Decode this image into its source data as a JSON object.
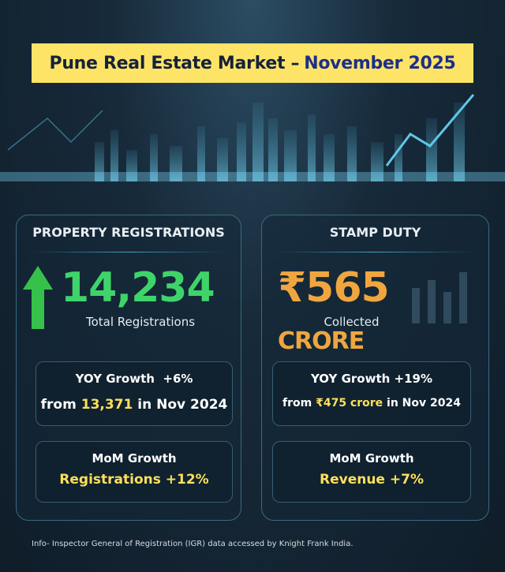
{
  "header": {
    "title_prefix": "Pune Real Estate Market –",
    "title_month": "November 2025"
  },
  "colors": {
    "banner": "#fde466",
    "green": "#3fd46a",
    "orange": "#f0a63f",
    "yellow": "#fbe05a"
  },
  "registrations": {
    "title": "PROPERTY REGISTRATIONS",
    "icon": "up-arrow-icon",
    "value": "14,234",
    "label": "Total Registrations",
    "yoy": {
      "label": "YOY Growth",
      "change": "+6%",
      "from_prefix": "from",
      "from_value": "13,371",
      "from_suffix": "in Nov 2024"
    },
    "mom": {
      "label": "MoM Growth",
      "value": "Registrations +12%"
    }
  },
  "stamp_duty": {
    "title": "STAMP DUTY",
    "icon": "bar-chart-icon",
    "value": "₹565",
    "unit": "CRORE",
    "label": "Collected",
    "yoy": {
      "label": "YOY Growth",
      "change": "+19%",
      "from_prefix": "from",
      "from_value": "₹475 crore",
      "from_suffix": "in Nov 2024"
    },
    "mom": {
      "label": "MoM Growth",
      "value": "Revenue +7%"
    }
  },
  "footer": "Info- Inspector General of Registration (IGR) data accessed by Knight Frank India."
}
